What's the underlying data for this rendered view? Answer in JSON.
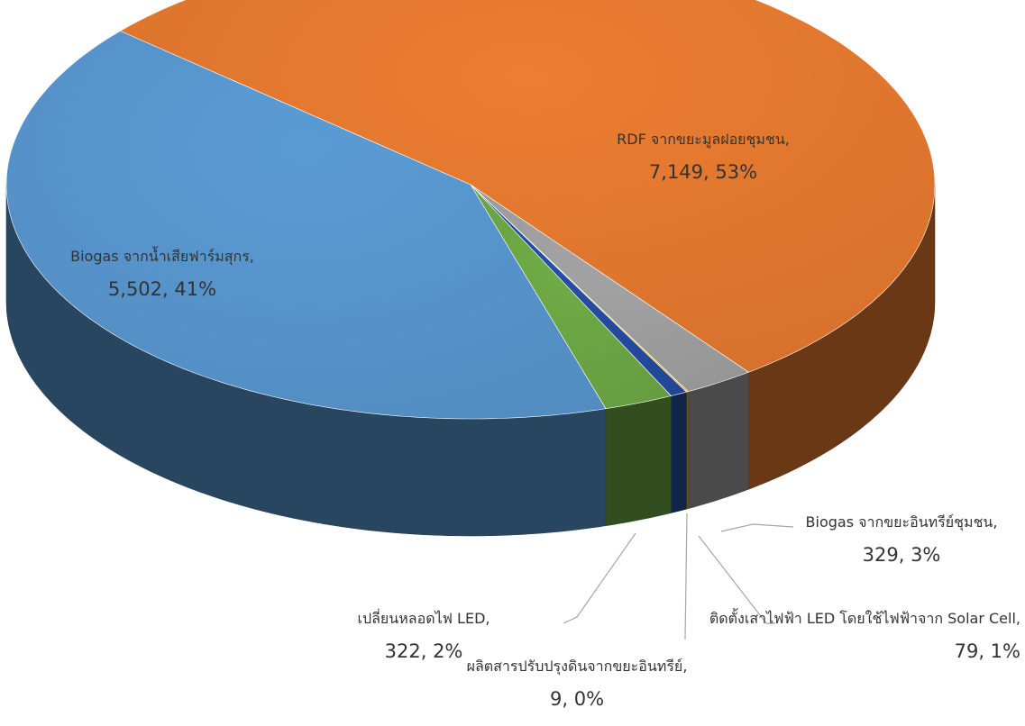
{
  "chart_data": {
    "type": "pie3d",
    "categories": [
      "RDF จากขยะมูลฝอยชุมชน",
      "Biogas จากขยะอินทรีย์ชุมชน",
      "ผลิตสารปรับปรุงดินจากขยะอินทรีย์",
      "ติดตั้งเสาไฟฟ้า LED โดยใช้ไฟฟ้าจาก Solar Cell",
      "เปลี่ยนหลอดไฟ LED",
      "Biogas จากน้ำเสียฟาร์มสุกร"
    ],
    "values": [
      7149,
      329,
      9,
      79,
      322,
      5502
    ],
    "value_labels": [
      "7,149",
      "329",
      "9",
      "79",
      "322",
      "5,502"
    ],
    "percent_labels": [
      "53%",
      "3%",
      "0%",
      "1%",
      "2%",
      "41%"
    ],
    "colors": [
      "#ed7d31",
      "#a5a5a5",
      "#ffc000",
      "#264fa8",
      "#70ad47",
      "#5b9bd5"
    ]
  }
}
